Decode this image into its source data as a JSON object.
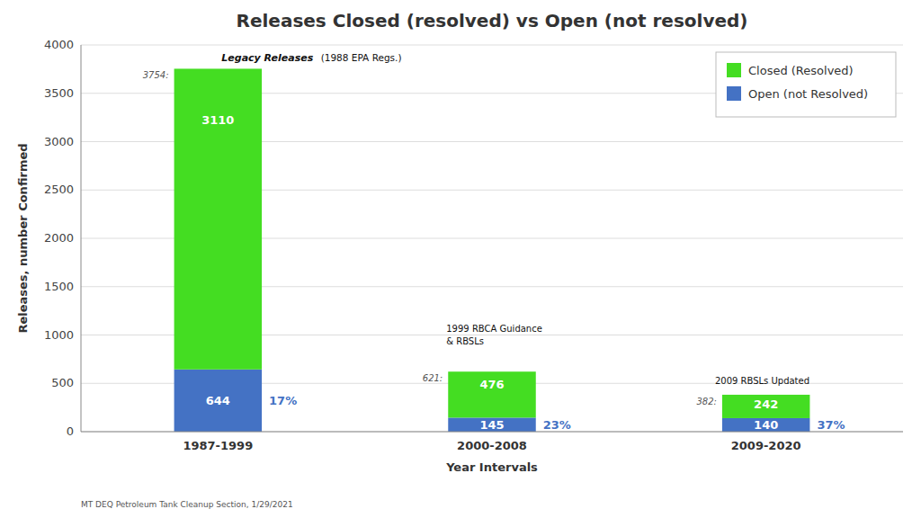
{
  "chart_data": {
    "type": "bar",
    "stacked": true,
    "data_labels": true,
    "grid": true,
    "legend": "upper right",
    "title": "Releases Closed (resolved) vs Open (not resolved)",
    "x_label": "Year Intervals",
    "y_label": "Releases, number Confirmed",
    "categories": [
      "1987-1999",
      "2000-2008",
      "2009-2020"
    ],
    "series": [
      {
        "name": "Open (not Resolved)",
        "color": "#4472c4",
        "values": [
          644,
          145,
          140
        ],
        "percent_labels": [
          "17%",
          "23%",
          "37%"
        ]
      },
      {
        "name": "Closed (Resolved)",
        "color": "#44dd22",
        "values": [
          3110,
          476,
          242
        ]
      }
    ],
    "totals": [
      3754,
      621,
      382
    ],
    "total_labels": [
      "3754:",
      "621:",
      "382:"
    ],
    "ylim": [
      0,
      4000
    ],
    "yticks": [
      0,
      500,
      1000,
      1500,
      2000,
      2500,
      3000,
      3500,
      4000
    ],
    "annotations": [
      "Legacy Releases",
      "(1988 EPA Regs.)",
      "1999 RBCA Guidance\n& RBSLs",
      "2009 RBSLs Updated"
    ],
    "footer": "MT DEQ Petroleum Tank Cleanup Section, 1/29/2021"
  }
}
